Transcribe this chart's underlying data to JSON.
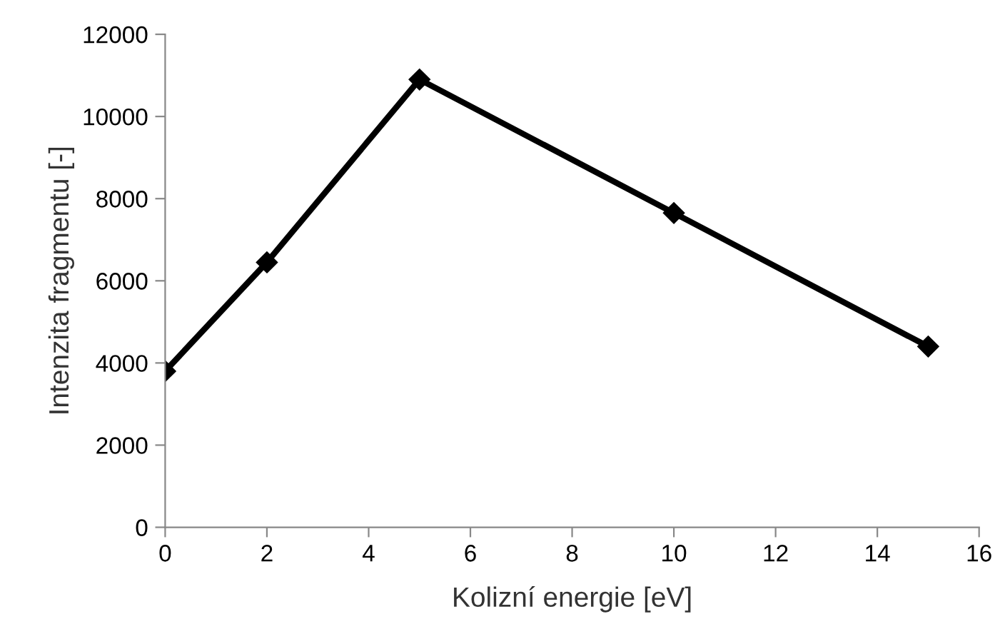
{
  "chart_data": {
    "type": "line",
    "xlabel": "Kolizní energie [eV]",
    "ylabel": "Intenzita fragmentu [-]",
    "x": [
      0,
      2,
      5,
      10,
      15
    ],
    "series": [
      {
        "color": "#000000",
        "values": [
          3800,
          6450,
          10900,
          7650,
          4400
        ]
      }
    ],
    "xlim": [
      0,
      16
    ],
    "xticks": [
      0,
      2,
      4,
      6,
      8,
      10,
      12,
      14,
      16
    ],
    "ylim": [
      0,
      12000
    ],
    "yticks": [
      0,
      2000,
      4000,
      6000,
      8000,
      10000,
      12000
    ],
    "grid": false,
    "legend": false,
    "marker": "diamond",
    "line_style": "solid"
  }
}
